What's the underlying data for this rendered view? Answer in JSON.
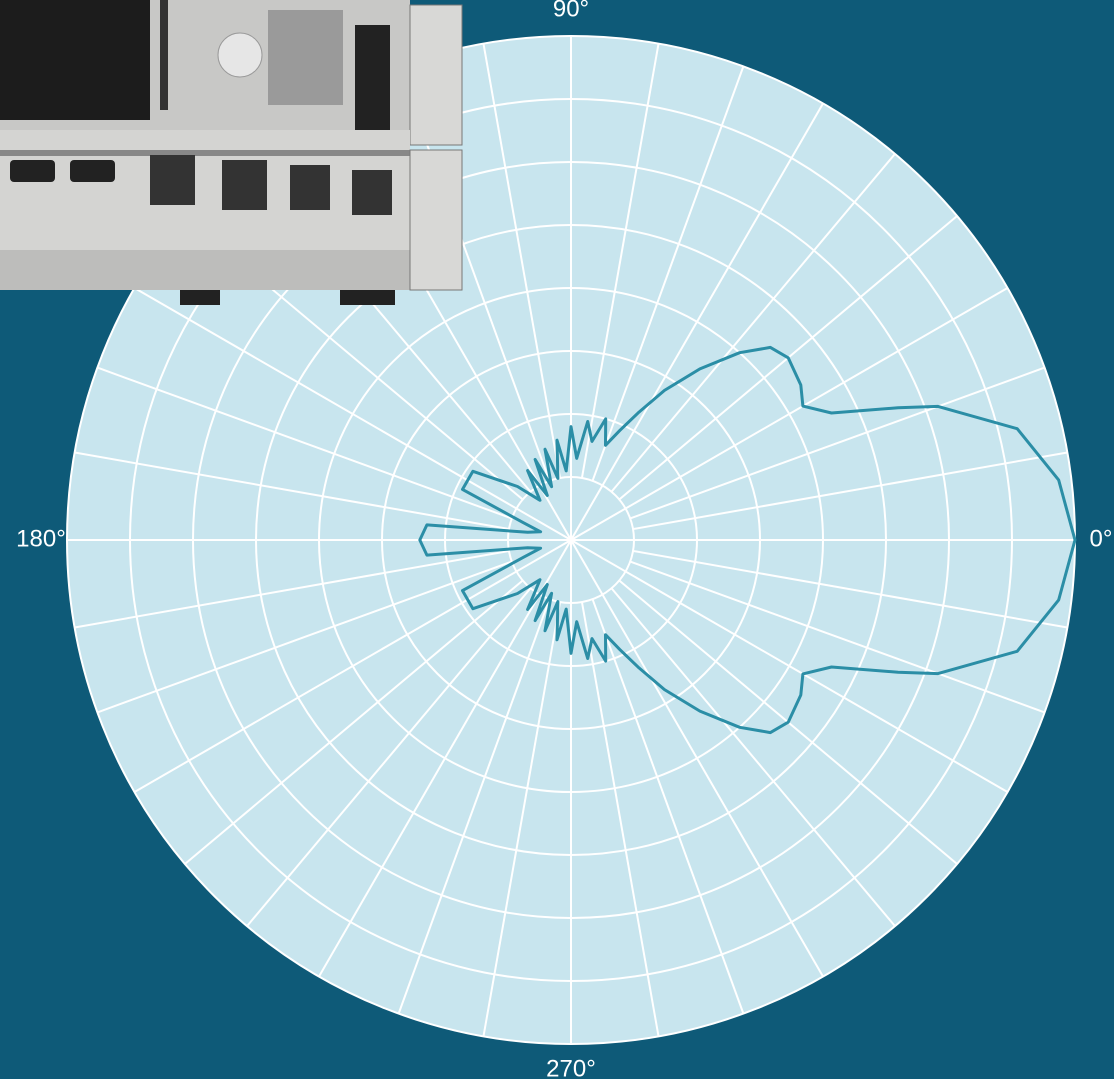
{
  "chart_data": {
    "type": "polar",
    "x": [
      0,
      7,
      14,
      20,
      22,
      26,
      30,
      34,
      40,
      44,
      48,
      53,
      58,
      62,
      66,
      70,
      74,
      78,
      82,
      86,
      90,
      94,
      98,
      102,
      106,
      110,
      114,
      118,
      122,
      128,
      135,
      145,
      155,
      160,
      165,
      170,
      174,
      180,
      186,
      190,
      195,
      200,
      205,
      215,
      225,
      232,
      238,
      242,
      246,
      250,
      254,
      258,
      262,
      266,
      270,
      274,
      278,
      282,
      286,
      290,
      294,
      298,
      302,
      307,
      312,
      316,
      320,
      326,
      330,
      334,
      338,
      340,
      346,
      353
    ],
    "values": [
      8.0,
      7.8,
      7.3,
      6.2,
      5.6,
      4.6,
      4.25,
      4.4,
      4.5,
      4.4,
      4.0,
      3.4,
      2.8,
      2.3,
      1.9,
      1.6,
      2.0,
      1.6,
      1.9,
      1.3,
      1.8,
      1.1,
      1.6,
      1.0,
      1.5,
      0.9,
      1.4,
      0.8,
      1.3,
      0.8,
      1.2,
      1.9,
      1.9,
      0.8,
      0.5,
      0.7,
      2.3,
      2.4,
      2.3,
      0.7,
      0.5,
      0.8,
      1.9,
      1.9,
      1.2,
      0.8,
      1.3,
      0.8,
      1.4,
      0.9,
      1.5,
      1.0,
      1.6,
      1.1,
      1.8,
      1.3,
      1.9,
      1.6,
      2.0,
      1.6,
      1.9,
      2.3,
      2.8,
      3.4,
      4.0,
      4.4,
      4.5,
      4.4,
      4.25,
      4.6,
      5.6,
      6.2,
      7.3,
      7.8
    ],
    "color": "#2b8ea6",
    "xticks": [
      {
        "value": 0,
        "label": "0°"
      },
      {
        "value": 90,
        "label": "90°"
      },
      {
        "value": 180,
        "label": "180°"
      },
      {
        "value": 270,
        "label": "270°"
      }
    ],
    "ylim": [
      0,
      8
    ],
    "yticks": [
      1,
      2,
      3,
      4,
      5,
      6,
      7,
      8
    ],
    "grid": true
  }
}
